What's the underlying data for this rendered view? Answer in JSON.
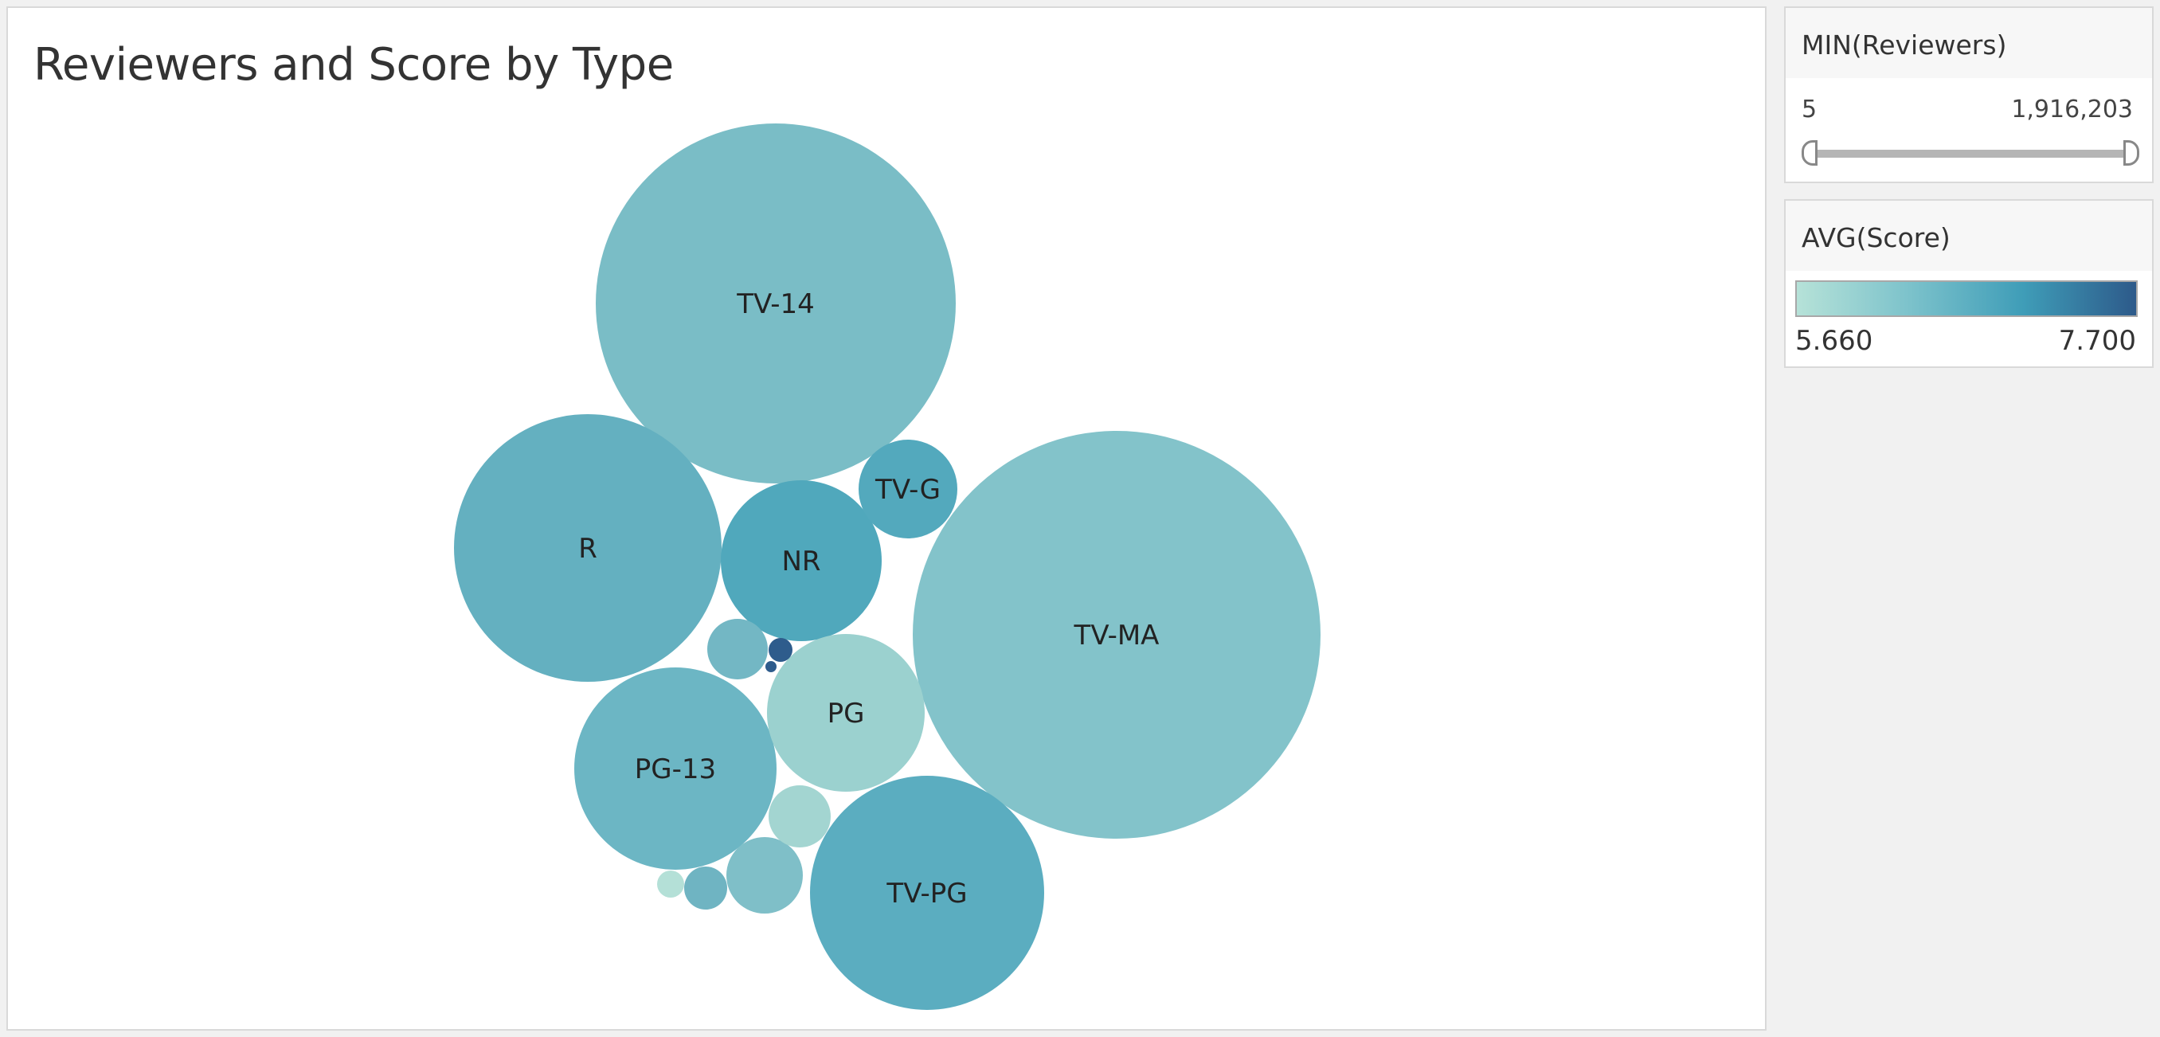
{
  "title": "Reviewers and Score by Type",
  "filter": {
    "title": "MIN(Reviewers)",
    "min_label": "5",
    "max_label": "1,916,203"
  },
  "color_legend": {
    "title": "AVG(Score)",
    "min_label": "5.660",
    "max_label": "7.700",
    "gradient": [
      "#b6e2d8",
      "#7cc2cb",
      "#3f9db8",
      "#2d5a8a"
    ]
  },
  "chart_data": {
    "type": "packed-bubble",
    "title": "Reviewers and Score by Type",
    "size_measure": "MIN(Reviewers)",
    "color_measure": "AVG(Score)",
    "bubbles": [
      {
        "label": "TV-MA",
        "color": "#83c3ca"
      },
      {
        "label": "TV-14",
        "color": "#7abdc6"
      },
      {
        "label": "R",
        "color": "#64b0c0"
      },
      {
        "label": "TV-PG",
        "color": "#5badc0"
      },
      {
        "label": "PG-13",
        "color": "#6cb6c4"
      },
      {
        "label": "NR",
        "color": "#50a8bc"
      },
      {
        "label": "PG",
        "color": "#9bd1cf"
      },
      {
        "label": "TV-G",
        "color": "#53a9bd"
      },
      {
        "label": "",
        "color": "#7fbfc8"
      },
      {
        "label": "",
        "color": "#73b7c4"
      },
      {
        "label": "",
        "color": "#a3d5d1"
      },
      {
        "label": "",
        "color": "#6fb4c2"
      },
      {
        "label": "",
        "color": "#b4e0d7"
      },
      {
        "label": "",
        "color": "#2e5c8c"
      },
      {
        "label": "",
        "color": "#2e5c8c"
      }
    ]
  }
}
